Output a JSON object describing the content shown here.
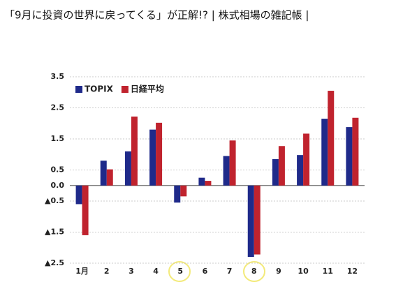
{
  "chart_data": {
    "type": "bar",
    "title": "「9月に投資の世界に戻ってくる」が正解!? | 株式相場の雑記帳 |",
    "categories": [
      "1月",
      "2",
      "3",
      "4",
      "5",
      "6",
      "7",
      "8",
      "9",
      "10",
      "11",
      "12"
    ],
    "series": [
      {
        "name": "TOPIX",
        "color": "#1f2a8a",
        "values": [
          -0.6,
          0.8,
          1.1,
          1.8,
          -0.55,
          0.25,
          0.95,
          -2.3,
          0.85,
          0.98,
          2.15,
          1.88
        ]
      },
      {
        "name": "日経平均",
        "color": "#c0232e",
        "values": [
          -1.6,
          0.52,
          2.22,
          2.02,
          -0.35,
          0.15,
          1.45,
          -2.22,
          1.27,
          1.67,
          3.05,
          2.18
        ]
      }
    ],
    "ylim": [
      -2.5,
      3.5
    ],
    "yticks": [
      3.5,
      2.5,
      1.5,
      0.5,
      {
        "value": 0,
        "label": "0.0"
      },
      {
        "value": -0.5,
        "label": "▲0.5"
      },
      {
        "value": -1.5,
        "label": "▲1.5"
      },
      {
        "value": -2.5,
        "label": "▲2.5"
      }
    ],
    "grid": true,
    "legend": "upper left"
  }
}
